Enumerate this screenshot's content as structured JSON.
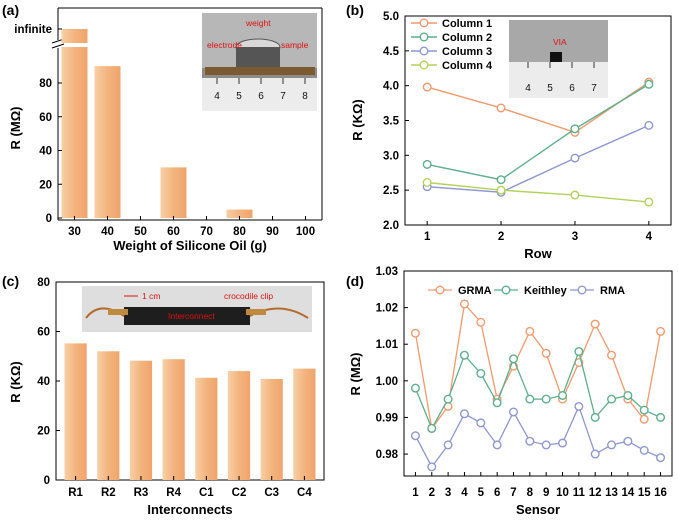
{
  "chart_data": [
    {
      "panel": "(a)",
      "type": "bar",
      "categories": [
        30,
        40,
        60,
        80
      ],
      "values": [
        "infinite",
        90,
        30,
        5
      ],
      "xlabel": "Weight of Silicone Oil (g)",
      "ylabel": "R (MΩ)",
      "xticks": [
        30,
        40,
        50,
        60,
        70,
        80,
        90,
        100
      ],
      "yticks": [
        0,
        20,
        40,
        60,
        80
      ],
      "ylim": [
        0,
        90
      ],
      "y_break_label": "infinite",
      "bar_color": "#F4BE8E",
      "inset": {
        "labels": [
          "weight",
          "electrode",
          "sample"
        ],
        "ruler": [
          "4",
          "5",
          "6",
          "7",
          "8"
        ]
      }
    },
    {
      "panel": "(b)",
      "type": "line",
      "x": [
        1,
        2,
        3,
        4
      ],
      "series": [
        {
          "name": "Column 1",
          "values": [
            3.98,
            3.68,
            3.33,
            4.05
          ],
          "color": "#F09A6E"
        },
        {
          "name": "Column 2",
          "values": [
            2.87,
            2.65,
            3.38,
            4.02
          ],
          "color": "#5DAE8B"
        },
        {
          "name": "Column 3",
          "values": [
            2.55,
            2.47,
            2.96,
            3.43
          ],
          "color": "#8E97CF"
        },
        {
          "name": "Column 4",
          "values": [
            2.61,
            2.5,
            2.43,
            2.33
          ],
          "color": "#B2D35A"
        }
      ],
      "xlabel": "Row",
      "ylabel": "R (KΩ)",
      "xticks": [
        1,
        2,
        3,
        4
      ],
      "yticks": [
        2.0,
        2.5,
        3.0,
        3.5,
        4.0,
        4.5,
        5.0
      ],
      "ylim": [
        2.0,
        5.0
      ],
      "legend": "top-left",
      "inset": {
        "labels": [
          "VIA"
        ],
        "ruler": [
          "4",
          "5",
          "6",
          "7"
        ]
      }
    },
    {
      "panel": "(c)",
      "type": "bar",
      "categories": [
        "R1",
        "R2",
        "R3",
        "R4",
        "C1",
        "C2",
        "C3",
        "C4"
      ],
      "values": [
        55.2,
        52.0,
        48.2,
        48.8,
        41.3,
        44.0,
        40.8,
        45.0
      ],
      "xlabel": "Interconnects",
      "ylabel": "R (KΩ)",
      "yticks": [
        0,
        20,
        40,
        60,
        80
      ],
      "ylim": [
        0,
        80
      ],
      "bar_color": "#F4BE8E",
      "inset": {
        "labels": [
          "1 cm",
          "crocodile clip",
          "Interconnect"
        ]
      }
    },
    {
      "panel": "(d)",
      "type": "line",
      "x": [
        1,
        2,
        3,
        4,
        5,
        6,
        7,
        8,
        9,
        10,
        11,
        12,
        13,
        14,
        15,
        16
      ],
      "series": [
        {
          "name": "GRMA",
          "values": [
            1.013,
            0.987,
            0.993,
            1.021,
            1.016,
            0.995,
            1.004,
            1.0135,
            1.0075,
            0.995,
            1.005,
            1.0155,
            1.007,
            0.995,
            0.9895,
            1.0135
          ],
          "color": "#F09A6E"
        },
        {
          "name": "Keithley",
          "values": [
            0.998,
            0.987,
            0.995,
            1.007,
            1.002,
            0.994,
            1.006,
            0.995,
            0.995,
            0.996,
            1.008,
            0.99,
            0.995,
            0.996,
            0.992,
            0.99
          ],
          "color": "#5DAE8B"
        },
        {
          "name": "RMA",
          "values": [
            0.985,
            0.9765,
            0.9825,
            0.991,
            0.9885,
            0.9825,
            0.9915,
            0.9835,
            0.9825,
            0.983,
            0.993,
            0.98,
            0.9825,
            0.9835,
            0.981,
            0.979
          ],
          "color": "#8E97CF"
        }
      ],
      "xlabel": "Sensor",
      "ylabel": "R (MΩ)",
      "xticks": [
        "1",
        "2",
        "3",
        "4",
        "5",
        "6",
        "7",
        "8",
        "9",
        "10",
        "11",
        "12",
        "13",
        "14",
        "15",
        "16"
      ],
      "yticks": [
        0.98,
        0.99,
        1.0,
        1.01,
        1.02,
        1.03
      ],
      "ylim": [
        0.974,
        1.03
      ],
      "legend": "top-center"
    }
  ]
}
